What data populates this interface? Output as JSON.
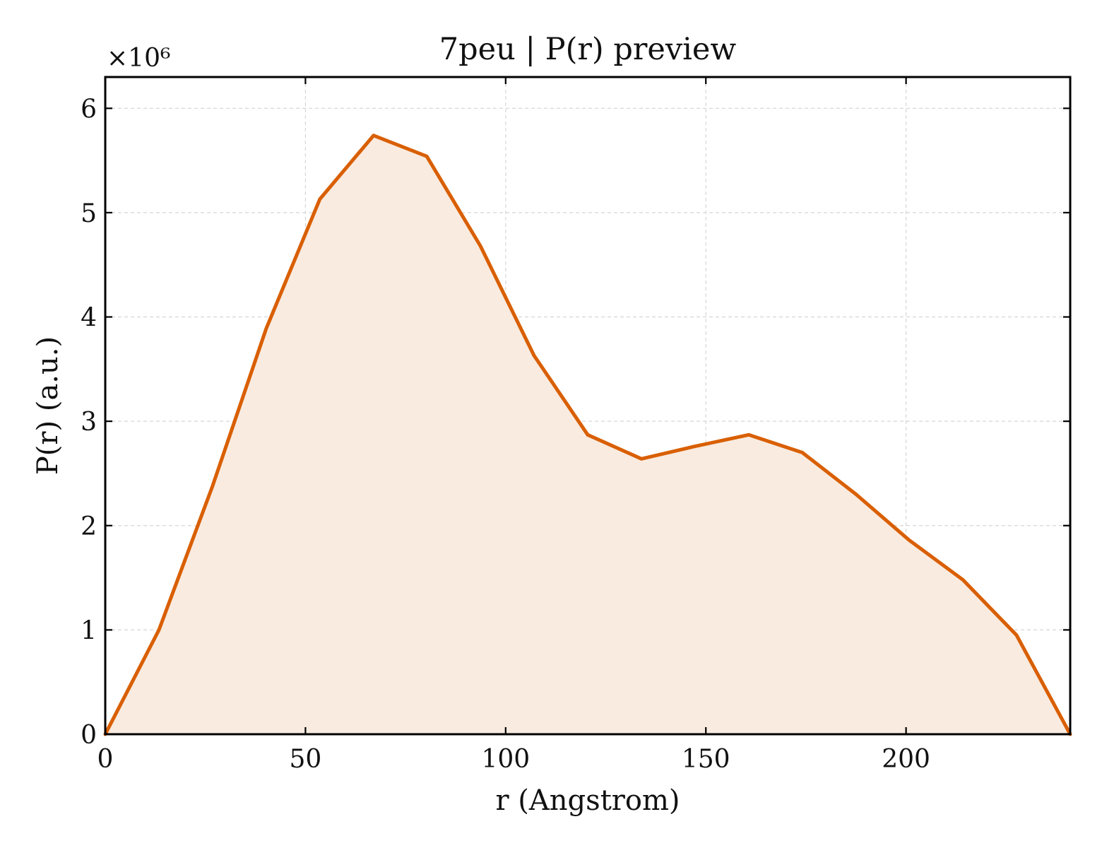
{
  "chart_data": {
    "type": "area",
    "title": "7peu | P(r) preview",
    "xlabel": "r (Angstrom)",
    "ylabel": "P(r) (a.u.)",
    "y_multiplier_label": "×10⁶",
    "xlim": [
      0,
      241
    ],
    "ylim": [
      0,
      6.3
    ],
    "x_ticks": [
      0,
      50,
      100,
      150,
      200
    ],
    "y_ticks": [
      0,
      1,
      2,
      3,
      4,
      5,
      6
    ],
    "grid": true,
    "tick_direction": "in",
    "line_color": "#d95f02",
    "fill_color": "#f9ebe0",
    "series": [
      {
        "x": [
          0,
          13.4,
          26.8,
          40.2,
          53.6,
          67.0,
          80.3,
          93.7,
          107.1,
          120.5,
          133.9,
          147.3,
          160.7,
          174.1,
          187.5,
          200.8,
          214.2,
          227.6,
          241.0
        ],
        "y": [
          0,
          1.0,
          2.38,
          3.89,
          5.13,
          5.74,
          5.54,
          4.68,
          3.63,
          2.87,
          2.64,
          2.76,
          2.87,
          2.7,
          2.3,
          1.86,
          1.48,
          0.95,
          0
        ]
      }
    ]
  }
}
